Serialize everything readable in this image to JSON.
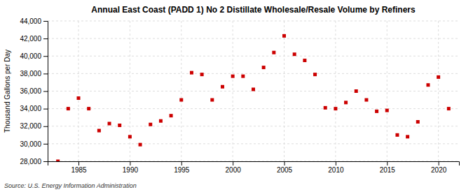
{
  "chart_data": {
    "type": "scatter",
    "title": "Annual East Coast (PADD 1) No 2 Distillate Wholesale/Resale Volume by Refiners",
    "ylabel": "Thousand Gallons per Day",
    "annotations": [
      "Source: U.S. Energy Information Administration"
    ],
    "x": [
      1983,
      1984,
      1985,
      1986,
      1987,
      1988,
      1989,
      1990,
      1991,
      1992,
      1993,
      1994,
      1995,
      1996,
      1997,
      1998,
      1999,
      2000,
      2001,
      2002,
      2003,
      2004,
      2005,
      2006,
      2007,
      2008,
      2009,
      2010,
      2011,
      2012,
      2013,
      2014,
      2015,
      2016,
      2017,
      2018,
      2019,
      2020,
      2021
    ],
    "values": [
      28000,
      34000,
      35200,
      34000,
      31500,
      32300,
      32100,
      30800,
      29900,
      32200,
      32600,
      33200,
      35000,
      38100,
      37900,
      35000,
      36500,
      37700,
      37700,
      36200,
      38700,
      40400,
      42300,
      40200,
      39500,
      37900,
      34100,
      34000,
      34700,
      36000,
      35000,
      33700,
      33800,
      31000,
      30800,
      32500,
      36700,
      37600,
      34000
    ],
    "color": "#cc0000",
    "marker": "square",
    "grid": true,
    "xlim": [
      1982,
      2022
    ],
    "ylim": [
      28000,
      44000
    ],
    "xticks": [
      1985,
      1990,
      1995,
      2000,
      2005,
      2010,
      2015,
      2020
    ],
    "yticks": [
      {
        "value": 28000,
        "label": "28,000"
      },
      {
        "value": 30000,
        "label": "30,000"
      },
      {
        "value": 32000,
        "label": "32,000"
      },
      {
        "value": 34000,
        "label": "34,000"
      },
      {
        "value": 36000,
        "label": "36,000"
      },
      {
        "value": 38000,
        "label": "38,000"
      },
      {
        "value": 40000,
        "label": "40,000"
      },
      {
        "value": 42000,
        "label": "42,000"
      },
      {
        "value": 44000,
        "label": "44,000"
      }
    ]
  }
}
